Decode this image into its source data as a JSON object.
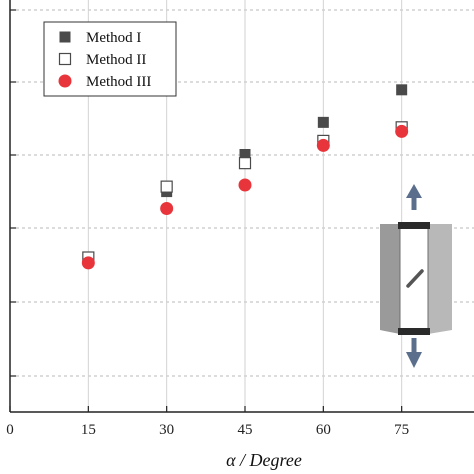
{
  "chart_data": {
    "type": "scatter",
    "title": "",
    "xlabel": "α / Degree",
    "ylabel": "",
    "x_ticks": [
      0,
      15,
      30,
      45,
      60,
      75
    ],
    "xlim": [
      0,
      90
    ],
    "ylim": [
      0,
      1
    ],
    "grid": true,
    "legend_position": "top-left",
    "series": [
      {
        "name": "Method I",
        "marker": "square-filled",
        "color": "#4a4a4a",
        "x": [
          15,
          30,
          45,
          60,
          75
        ],
        "y": [
          0.37,
          0.535,
          0.625,
          0.703,
          0.782
        ]
      },
      {
        "name": "Method II",
        "marker": "square-open",
        "color": "#4a4a4a",
        "x": [
          15,
          30,
          45,
          60,
          75
        ],
        "y": [
          0.375,
          0.547,
          0.604,
          0.658,
          0.691
        ]
      },
      {
        "name": "Method III",
        "marker": "circle-filled",
        "color": "#e8353b",
        "x": [
          15,
          30,
          45,
          60,
          75
        ],
        "y": [
          0.362,
          0.494,
          0.551,
          0.647,
          0.681
        ]
      }
    ]
  },
  "inset": {
    "icon": "specimen-tension-icon",
    "color": "#9a9a9a",
    "arrow_color": "#5b6f8c"
  }
}
